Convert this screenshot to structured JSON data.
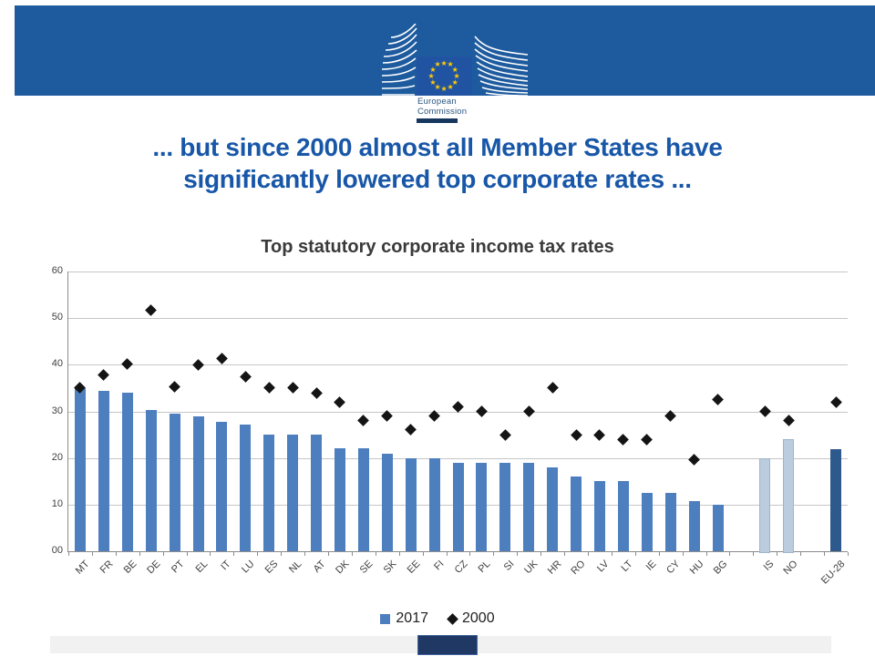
{
  "header": {
    "logo": {
      "line1": "European",
      "line2": "Commission"
    }
  },
  "title": {
    "line1": "... but since 2000 almost all Member States have",
    "line2": "significantly lowered top corporate rates ..."
  },
  "theme": {
    "banner_blue": "#1E5B9E",
    "flag_blue": "#2153A3",
    "star_yellow": "#FFCC00",
    "title_blue": "#1857A8",
    "underline_navy": "#17375E",
    "footer_navy": "#1F3864"
  },
  "chart_data": {
    "type": "bar",
    "title": "Top statutory corporate income tax rates",
    "categories": [
      "MT",
      "FR",
      "BE",
      "DE",
      "PT",
      "EL",
      "IT",
      "LU",
      "ES",
      "NL",
      "AT",
      "DK",
      "SE",
      "SK",
      "EE",
      "FI",
      "CZ",
      "PL",
      "SI",
      "UK",
      "HR",
      "RO",
      "LV",
      "LT",
      "IE",
      "CY",
      "HU",
      "BG",
      "",
      "IS",
      "NO",
      "",
      "EU-28"
    ],
    "series": [
      {
        "name": "2017",
        "type": "bar",
        "values": [
          35,
          34.4,
          34,
          30.2,
          29.5,
          29,
          27.8,
          27.1,
          25,
          25,
          25,
          22,
          22,
          21,
          20,
          20,
          19,
          19,
          19,
          19,
          18,
          16,
          15,
          15,
          12.5,
          12.5,
          10.8,
          10,
          null,
          20,
          24,
          null,
          21.9
        ]
      },
      {
        "name": "2000",
        "type": "scatter",
        "values": [
          35,
          37.8,
          40.2,
          51.6,
          35.2,
          40,
          41.3,
          37.5,
          35,
          35,
          34,
          32,
          28,
          29,
          26,
          29,
          31,
          30,
          25,
          30,
          35,
          25,
          25,
          24,
          24,
          29,
          19.6,
          32.5,
          null,
          30,
          28,
          null,
          32
        ]
      }
    ],
    "ylim": [
      0,
      60
    ],
    "yticks": [
      {
        "label": "00",
        "value": 0
      },
      {
        "label": "10",
        "value": 10
      },
      {
        "label": "20",
        "value": 20
      },
      {
        "label": "30",
        "value": 30
      },
      {
        "label": "40",
        "value": 40
      },
      {
        "label": "50",
        "value": 50
      },
      {
        "label": "60",
        "value": 60
      }
    ],
    "grid": true,
    "legend_position": "bottom",
    "colors": {
      "bar_default": "#4D7EBE",
      "bar_light": "#BACCDE",
      "bar_light_border": "#9DB6CC",
      "bar_dark": "#2E598C",
      "marker": "#141414"
    },
    "light_bars": [
      "IS",
      "NO"
    ],
    "dark_bars": [
      "EU-28"
    ]
  },
  "legend": {
    "items": [
      {
        "label": "2017",
        "marker": "square"
      },
      {
        "label": "2000",
        "marker": "diamond"
      }
    ]
  }
}
